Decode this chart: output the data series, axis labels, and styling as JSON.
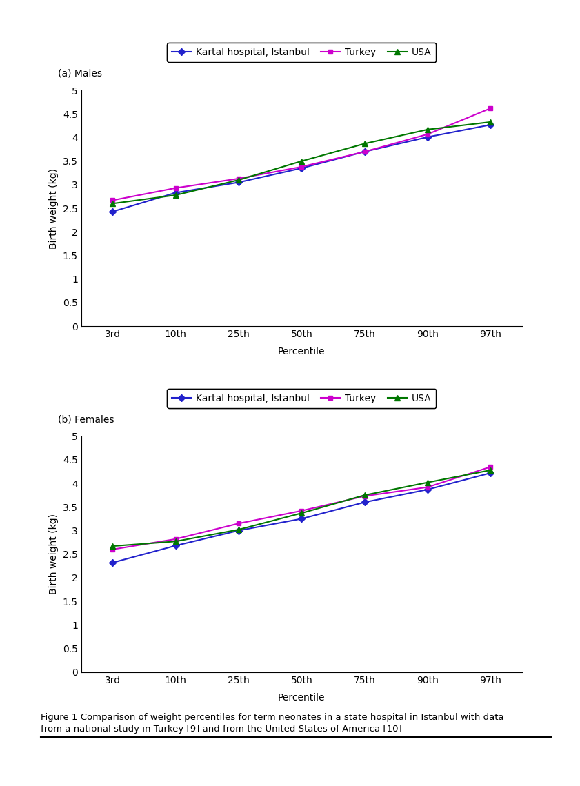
{
  "percentile_labels": [
    "3rd",
    "10th",
    "25th",
    "50th",
    "75th",
    "90th",
    "97th"
  ],
  "x_values": [
    0,
    1,
    2,
    3,
    4,
    5,
    6
  ],
  "males": {
    "kartal": [
      2.43,
      2.83,
      3.05,
      3.35,
      3.7,
      4.01,
      4.27
    ],
    "turkey": [
      2.67,
      2.93,
      3.13,
      3.38,
      3.7,
      4.07,
      4.62
    ],
    "usa": [
      2.6,
      2.78,
      3.1,
      3.5,
      3.87,
      4.17,
      4.33
    ]
  },
  "females": {
    "kartal": [
      2.32,
      2.68,
      3.0,
      3.25,
      3.6,
      3.87,
      4.22
    ],
    "turkey": [
      2.6,
      2.82,
      3.15,
      3.42,
      3.73,
      3.92,
      4.35
    ],
    "usa": [
      2.67,
      2.77,
      3.02,
      3.37,
      3.75,
      4.02,
      4.28
    ]
  },
  "colors": {
    "kartal": "#2222cc",
    "turkey": "#cc00cc",
    "usa": "#007700"
  },
  "legend_labels": [
    "Kartal hospital, Istanbul",
    "Turkey",
    "USA"
  ],
  "ylabel": "Birth weight (kg)",
  "xlabel": "Percentile",
  "title_a": "(a) Males",
  "title_b": "(b) Females",
  "ylim": [
    0,
    5
  ],
  "yticks": [
    0,
    0.5,
    1.0,
    1.5,
    2.0,
    2.5,
    3.0,
    3.5,
    4.0,
    4.5,
    5.0
  ],
  "ytick_labels": [
    "0",
    "0.5",
    "1",
    "1.5",
    "2",
    "2.5",
    "3",
    "3.5",
    "4",
    "4.5",
    "5"
  ],
  "caption_line1": "Figure 1 Comparison of weight percentiles for term neonates in a state hospital in Istanbul with data",
  "caption_line2": "from a national study in Turkey [9] and from the United States of America [10]"
}
